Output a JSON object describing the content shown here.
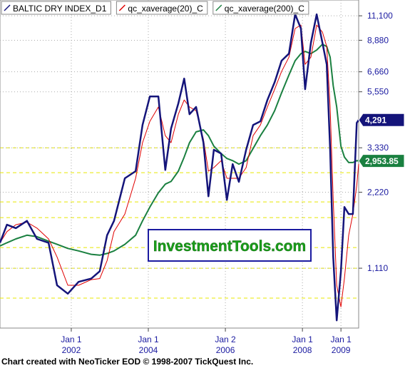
{
  "chart_data": {
    "type": "line",
    "log_scale": true,
    "grid": true,
    "x": [
      2000.15,
      2000.33,
      2000.56,
      2000.85,
      2001.11,
      2001.41,
      2001.63,
      2001.91,
      2002.19,
      2002.52,
      2002.74,
      2002.93,
      2003.11,
      2003.39,
      2003.67,
      2003.85,
      2004.04,
      2004.26,
      2004.44,
      2004.59,
      2004.78,
      2004.93,
      2005.07,
      2005.24,
      2005.43,
      2005.56,
      2005.7,
      2005.89,
      2006.04,
      2006.19,
      2006.35,
      2006.54,
      2006.72,
      2006.91,
      2007.09,
      2007.28,
      2007.46,
      2007.65,
      2007.81,
      2007.96,
      2008.07,
      2008.22,
      2008.37,
      2008.52,
      2008.63,
      2008.72,
      2008.8,
      2008.89,
      2009.0,
      2009.09,
      2009.2,
      2009.31,
      2009.41,
      2009.46
    ],
    "series": [
      {
        "name": "BALTIC DRY INDEX_D1",
        "color": "#14147a",
        "width": 2.5,
        "last_label": "4,291",
        "values": [
          1400,
          1650,
          1600,
          1710,
          1450,
          1400,
          950,
          880,
          980,
          1010,
          1080,
          1500,
          1710,
          2520,
          2690,
          4100,
          5320,
          5320,
          2720,
          3970,
          4990,
          6260,
          4520,
          4830,
          3490,
          2140,
          3270,
          3160,
          2070,
          2870,
          2440,
          3270,
          4100,
          4240,
          5150,
          6060,
          7370,
          7860,
          11250,
          9880,
          5680,
          8670,
          11250,
          8670,
          7130,
          3270,
          1230,
          690,
          1080,
          1940,
          1820,
          1820,
          4180,
          4291
        ]
      },
      {
        "name": "qc_xaverage(20)_C",
        "color": "#e00000",
        "width": 1,
        "values": [
          1400,
          1550,
          1650,
          1690,
          1600,
          1450,
          1230,
          950,
          950,
          1000,
          1010,
          1190,
          1550,
          1820,
          2520,
          3490,
          4240,
          4830,
          3720,
          3490,
          4520,
          5150,
          4830,
          4670,
          3600,
          2690,
          2780,
          2960,
          2520,
          2520,
          2520,
          2780,
          3720,
          4100,
          4830,
          5680,
          6680,
          7610,
          9880,
          10200,
          7130,
          7610,
          10200,
          9560,
          8390,
          4830,
          2070,
          950,
          780,
          1010,
          1500,
          1820,
          2360,
          2870
        ]
      },
      {
        "name": "qc_xaverage(200)_C",
        "color": "#1a8040",
        "width": 2,
        "last_label": "2,953.85",
        "values": [
          1360,
          1400,
          1450,
          1500,
          1480,
          1420,
          1380,
          1330,
          1300,
          1260,
          1250,
          1270,
          1300,
          1380,
          1500,
          1710,
          1940,
          2210,
          2390,
          2450,
          2690,
          3060,
          3490,
          3850,
          3920,
          3720,
          3380,
          3160,
          3020,
          2960,
          2870,
          2960,
          3310,
          3720,
          4100,
          4670,
          5500,
          6470,
          7370,
          7860,
          8020,
          7860,
          8120,
          8560,
          8390,
          7610,
          5870,
          4830,
          3380,
          3060,
          2910,
          2910,
          2960,
          2953.85
        ]
      }
    ],
    "xlim": [
      2000.15,
      2009.46
    ],
    "xticks": [
      {
        "value": 2002.0,
        "label": "Jan 1 2002"
      },
      {
        "value": 2004.0,
        "label": "Jan 1 2004"
      },
      {
        "value": 2006.0,
        "label": "Jan 2 2006"
      },
      {
        "value": 2008.0,
        "label": "Jan 1 2008"
      },
      {
        "value": 2009.0,
        "label": "Jan 1 2009"
      }
    ],
    "ylim": [
      643,
      12820
    ],
    "yticks": [
      {
        "value": 1110,
        "label": "1,110"
      },
      {
        "value": 2220,
        "label": "2,220"
      },
      {
        "value": 3330,
        "label": "3,330"
      },
      {
        "value": 5550,
        "label": "5,550"
      },
      {
        "value": 6660,
        "label": "6,660"
      },
      {
        "value": 8880,
        "label": "8,880"
      },
      {
        "value": 11100,
        "label": "11,100"
      }
    ],
    "levels": [
      845,
      1110,
      1340,
      1761,
      2032,
      2653,
      3330
    ],
    "watermark": "InvestmentTools.com",
    "footer": "Chart created with NeoTicker EOD © 1998-2007 TickQuest Inc."
  }
}
